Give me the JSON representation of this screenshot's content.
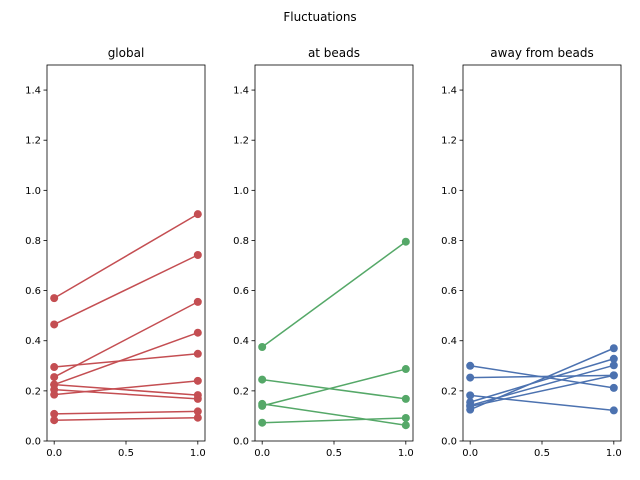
{
  "figure": {
    "suptitle": "Fluctuations"
  },
  "chart_data": [
    {
      "type": "line",
      "title": "global",
      "color": "#c44e52",
      "xlim": [
        0,
        1
      ],
      "ylim": [
        0,
        1.5
      ],
      "x_ticks": [
        "0.0",
        "0.5",
        "1.0"
      ],
      "y_ticks": [
        "0.0",
        "0.2",
        "0.4",
        "0.6",
        "0.8",
        "1.0",
        "1.2",
        "1.4"
      ],
      "x": [
        0,
        1
      ],
      "series": [
        {
          "values": [
            0.57,
            0.905
          ]
        },
        {
          "values": [
            0.465,
            0.742
          ]
        },
        {
          "values": [
            0.255,
            0.555
          ]
        },
        {
          "values": [
            0.225,
            0.432
          ]
        },
        {
          "values": [
            0.295,
            0.348
          ]
        },
        {
          "values": [
            0.185,
            0.24
          ]
        },
        {
          "values": [
            0.225,
            0.183
          ]
        },
        {
          "values": [
            0.205,
            0.168
          ]
        },
        {
          "values": [
            0.108,
            0.118
          ]
        },
        {
          "values": [
            0.083,
            0.093
          ]
        }
      ]
    },
    {
      "type": "line",
      "title": "at beads",
      "color": "#55a868",
      "xlim": [
        0,
        1
      ],
      "ylim": [
        0,
        1.5
      ],
      "x_ticks": [
        "0.0",
        "0.5",
        "1.0"
      ],
      "y_ticks": [
        "0.0",
        "0.2",
        "0.4",
        "0.6",
        "0.8",
        "1.0",
        "1.2",
        "1.4"
      ],
      "x": [
        0,
        1
      ],
      "series": [
        {
          "values": [
            0.375,
            0.795
          ]
        },
        {
          "values": [
            0.245,
            0.168
          ]
        },
        {
          "values": [
            0.14,
            0.287
          ]
        },
        {
          "values": [
            0.148,
            0.063
          ]
        },
        {
          "values": [
            0.073,
            0.092
          ]
        }
      ]
    },
    {
      "type": "line",
      "title": "away from beads",
      "color": "#4c72b0",
      "xlim": [
        0,
        1
      ],
      "ylim": [
        0,
        1.5
      ],
      "x_ticks": [
        "0.0",
        "0.5",
        "1.0"
      ],
      "y_ticks": [
        "0.0",
        "0.2",
        "0.4",
        "0.6",
        "0.8",
        "1.0",
        "1.2",
        "1.4"
      ],
      "x": [
        0,
        1
      ],
      "series": [
        {
          "values": [
            0.3,
            0.212
          ]
        },
        {
          "values": [
            0.253,
            0.262
          ]
        },
        {
          "values": [
            0.182,
            0.122
          ]
        },
        {
          "values": [
            0.155,
            0.328
          ]
        },
        {
          "values": [
            0.142,
            0.302
          ]
        },
        {
          "values": [
            0.138,
            0.262
          ]
        },
        {
          "values": [
            0.125,
            0.37
          ]
        }
      ]
    }
  ]
}
